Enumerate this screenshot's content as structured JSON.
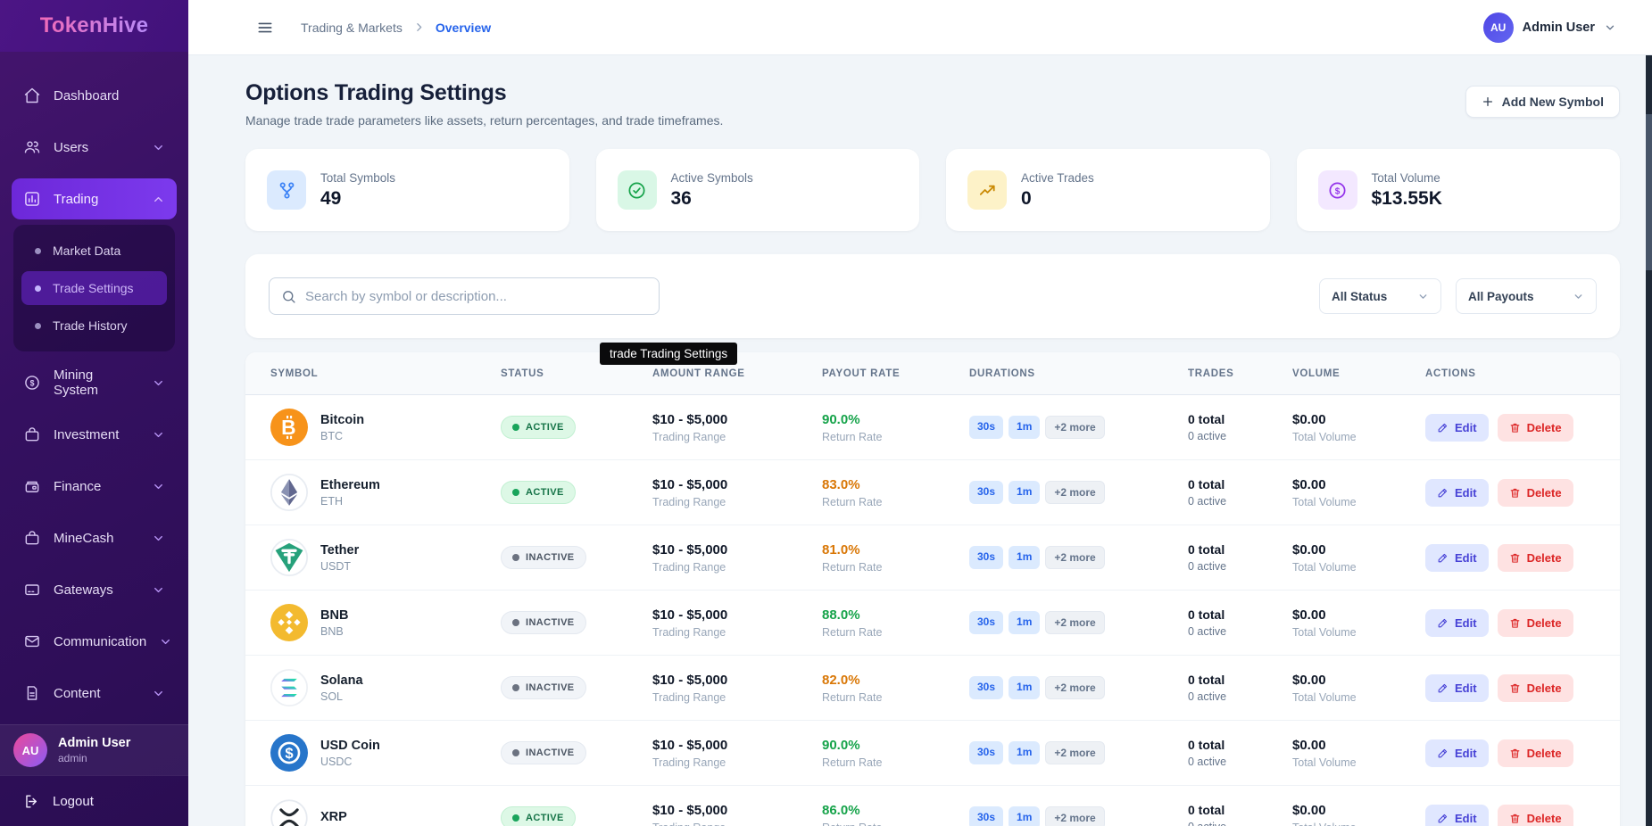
{
  "brand": {
    "name": "TokenHive"
  },
  "sidebar": {
    "items": [
      {
        "label": "Dashboard",
        "icon": "home-icon"
      },
      {
        "label": "Users",
        "icon": "users-icon",
        "chevron": "down"
      },
      {
        "label": "Trading",
        "icon": "bar-chart-icon",
        "chevron": "up",
        "active": true
      },
      {
        "label": "Mining System",
        "icon": "dollar-circle-icon",
        "chevron": "down"
      },
      {
        "label": "Investment",
        "icon": "briefcase-icon",
        "chevron": "down"
      },
      {
        "label": "Finance",
        "icon": "wallet-icon",
        "chevron": "down"
      },
      {
        "label": "MineCash",
        "icon": "briefcase-icon",
        "chevron": "down"
      },
      {
        "label": "Gateways",
        "icon": "credit-card-icon",
        "chevron": "down"
      },
      {
        "label": "Communication",
        "icon": "mail-icon",
        "chevron": "down"
      },
      {
        "label": "Content",
        "icon": "document-icon",
        "chevron": "down"
      }
    ],
    "trading_submenu": [
      {
        "label": "Market Data",
        "active": false
      },
      {
        "label": "Trade Settings",
        "active": true
      },
      {
        "label": "Trade History",
        "active": false
      }
    ],
    "user": {
      "initials": "AU",
      "name": "Admin User",
      "role": "admin"
    },
    "logout_label": "Logout"
  },
  "header": {
    "breadcrumb_section": "Trading & Markets",
    "breadcrumb_current": "Overview",
    "user": {
      "initials": "AU",
      "name": "Admin User"
    }
  },
  "page": {
    "title": "Options Trading Settings",
    "subtitle": "Manage trade trade parameters like assets, return percentages, and trade timeframes.",
    "add_button": "Add New Symbol"
  },
  "stats": [
    {
      "label": "Total Symbols",
      "value": "49",
      "icon": "fork-icon",
      "accent": "#3b82f6"
    },
    {
      "label": "Active Symbols",
      "value": "36",
      "icon": "check-circle-icon",
      "accent": "#16a34a"
    },
    {
      "label": "Active Trades",
      "value": "0",
      "icon": "trending-up-icon",
      "accent": "#ca8a04"
    },
    {
      "label": "Total Volume",
      "value": "$13.55K",
      "icon": "dollar-circle-icon",
      "accent": "#9333ea"
    }
  ],
  "filters": {
    "search_placeholder": "Search by symbol or description...",
    "status_filter": "All Status",
    "payout_filter": "All Payouts"
  },
  "tooltip": "trade Trading Settings",
  "colors": {
    "green": "#16a34a",
    "amber": "#d97706"
  },
  "table": {
    "columns": [
      "SYMBOL",
      "STATUS",
      "AMOUNT RANGE",
      "PAYOUT RATE",
      "DURATIONS",
      "TRADES",
      "VOLUME",
      "ACTIONS"
    ],
    "rows": [
      {
        "name": "Bitcoin",
        "ticker": "BTC",
        "coin": "btc",
        "status": "ACTIVE",
        "amount": "$10 - $5,000",
        "amount_sub": "Trading Range",
        "rate": "90.0%",
        "rate_tone": "green",
        "rate_sub": "Return Rate",
        "durations": [
          "30s",
          "1m",
          "+2 more"
        ],
        "trades": "0 total",
        "trades_sub": "0 active",
        "volume": "$0.00",
        "volume_sub": "Total Volume",
        "edit_label": "Edit",
        "delete_label": "Delete"
      },
      {
        "name": "Ethereum",
        "ticker": "ETH",
        "coin": "eth",
        "status": "ACTIVE",
        "amount": "$10 - $5,000",
        "amount_sub": "Trading Range",
        "rate": "83.0%",
        "rate_tone": "amber",
        "rate_sub": "Return Rate",
        "durations": [
          "30s",
          "1m",
          "+2 more"
        ],
        "trades": "0 total",
        "trades_sub": "0 active",
        "volume": "$0.00",
        "volume_sub": "Total Volume",
        "edit_label": "Edit",
        "delete_label": "Delete"
      },
      {
        "name": "Tether",
        "ticker": "USDT",
        "coin": "usdt",
        "status": "INACTIVE",
        "amount": "$10 - $5,000",
        "amount_sub": "Trading Range",
        "rate": "81.0%",
        "rate_tone": "amber",
        "rate_sub": "Return Rate",
        "durations": [
          "30s",
          "1m",
          "+2 more"
        ],
        "trades": "0 total",
        "trades_sub": "0 active",
        "volume": "$0.00",
        "volume_sub": "Total Volume",
        "edit_label": "Edit",
        "delete_label": "Delete"
      },
      {
        "name": "BNB",
        "ticker": "BNB",
        "coin": "bnb",
        "status": "INACTIVE",
        "amount": "$10 - $5,000",
        "amount_sub": "Trading Range",
        "rate": "88.0%",
        "rate_tone": "green",
        "rate_sub": "Return Rate",
        "durations": [
          "30s",
          "1m",
          "+2 more"
        ],
        "trades": "0 total",
        "trades_sub": "0 active",
        "volume": "$0.00",
        "volume_sub": "Total Volume",
        "edit_label": "Edit",
        "delete_label": "Delete"
      },
      {
        "name": "Solana",
        "ticker": "SOL",
        "coin": "sol",
        "status": "INACTIVE",
        "amount": "$10 - $5,000",
        "amount_sub": "Trading Range",
        "rate": "82.0%",
        "rate_tone": "amber",
        "rate_sub": "Return Rate",
        "durations": [
          "30s",
          "1m",
          "+2 more"
        ],
        "trades": "0 total",
        "trades_sub": "0 active",
        "volume": "$0.00",
        "volume_sub": "Total Volume",
        "edit_label": "Edit",
        "delete_label": "Delete"
      },
      {
        "name": "USD Coin",
        "ticker": "USDC",
        "coin": "usdc",
        "status": "INACTIVE",
        "amount": "$10 - $5,000",
        "amount_sub": "Trading Range",
        "rate": "90.0%",
        "rate_tone": "green",
        "rate_sub": "Return Rate",
        "durations": [
          "30s",
          "1m",
          "+2 more"
        ],
        "trades": "0 total",
        "trades_sub": "0 active",
        "volume": "$0.00",
        "volume_sub": "Total Volume",
        "edit_label": "Edit",
        "delete_label": "Delete"
      },
      {
        "name": "XRP",
        "ticker": "",
        "coin": "xrp",
        "status": "ACTIVE",
        "amount": "$10 - $5,000",
        "amount_sub": "Trading Range",
        "rate": "86.0%",
        "rate_tone": "green",
        "rate_sub": "Return Rate",
        "durations": [
          "30s",
          "1m",
          "+2 more"
        ],
        "trades": "0 total",
        "trades_sub": "0 active",
        "volume": "$0.00",
        "volume_sub": "Total Volume",
        "edit_label": "Edit",
        "delete_label": "Delete"
      }
    ]
  }
}
